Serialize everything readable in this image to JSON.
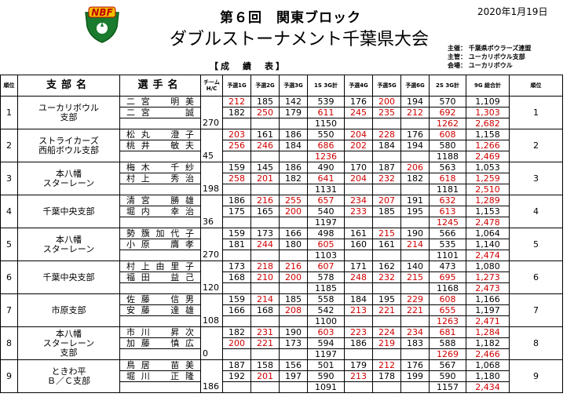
{
  "header": {
    "logo_text": "NBF",
    "date": "2020年1月19日",
    "title_line1": "第６回　関東ブロック",
    "title_line2": "ダブルストーナメント千葉県大会",
    "organizers": [
      {
        "label": "主催：",
        "value": "千葉県ボウラーズ連盟"
      },
      {
        "label": "主管：",
        "value": "ユーカリボウル支部"
      },
      {
        "label": "会場：",
        "value": "ユーカリボウル"
      }
    ],
    "section_title": "【成　績　表】"
  },
  "columns": {
    "rank_no": "順位",
    "branch": "支部名",
    "player": "選手名",
    "team_hdc": "チームH/C",
    "g1": "予選1G",
    "g2": "予選2G",
    "g3": "予選3G",
    "s1": "1S 3G計",
    "g4": "予選4G",
    "g5": "予選5G",
    "g6": "予選6G",
    "s2": "2S 3G計",
    "total": "9G 総合計",
    "rank": "順位"
  },
  "colors": {
    "highlight": "#d00000",
    "text": "#000000"
  },
  "teams": [
    {
      "no": "1",
      "branch": [
        "ユーカリボウル",
        "支部"
      ],
      "hdc": "270",
      "players": [
        {
          "name": "二宮　明美",
          "g1": "212",
          "g2": "185",
          "g3": "142",
          "s1": "539",
          "g4": "176",
          "g5": "200",
          "g6": "194",
          "s2": "570",
          "total": "1,109",
          "red": [
            "g1",
            "g5"
          ]
        },
        {
          "name": "二宮　　誠",
          "g1": "182",
          "g2": "250",
          "g3": "179",
          "s1": "611",
          "g4": "245",
          "g5": "235",
          "g6": "212",
          "s2": "692",
          "total": "1,303",
          "red": [
            "g2",
            "s1",
            "g4",
            "g5",
            "g6",
            "s2",
            "total"
          ]
        }
      ],
      "s1_total": "1150",
      "s2_total": "1262",
      "grand_total": "2,682",
      "rank": "1",
      "red_totals": [
        "s2_total",
        "grand_total"
      ]
    },
    {
      "no": "2",
      "branch": [
        "ストライカーズ",
        "西船ボウル支部"
      ],
      "hdc": "45",
      "players": [
        {
          "name": "松丸　澄子",
          "g1": "203",
          "g2": "161",
          "g3": "186",
          "s1": "550",
          "g4": "204",
          "g5": "228",
          "g6": "176",
          "s2": "608",
          "total": "1,158",
          "red": [
            "g1",
            "g4",
            "g5",
            "s2"
          ]
        },
        {
          "name": "桃井　敏夫",
          "g1": "256",
          "g2": "246",
          "g3": "184",
          "s1": "686",
          "g4": "202",
          "g5": "184",
          "g6": "194",
          "s2": "580",
          "total": "1,266",
          "red": [
            "g1",
            "g2",
            "s1",
            "g4",
            "total"
          ]
        }
      ],
      "s1_total": "1236",
      "s2_total": "1188",
      "grand_total": "2,469",
      "rank": "2",
      "red_totals": [
        "s1_total",
        "grand_total"
      ]
    },
    {
      "no": "3",
      "branch": [
        "本八幡",
        "スターレーン"
      ],
      "hdc": "198",
      "players": [
        {
          "name": "梅木　千紗",
          "g1": "159",
          "g2": "145",
          "g3": "186",
          "s1": "490",
          "g4": "170",
          "g5": "187",
          "g6": "206",
          "s2": "563",
          "total": "1,053",
          "red": [
            "g6"
          ]
        },
        {
          "name": "村上　秀治",
          "g1": "258",
          "g2": "201",
          "g3": "182",
          "s1": "641",
          "g4": "204",
          "g5": "232",
          "g6": "182",
          "s2": "618",
          "total": "1,259",
          "red": [
            "g1",
            "g2",
            "s1",
            "g4",
            "g5",
            "s2",
            "total"
          ]
        }
      ],
      "s1_total": "1131",
      "s2_total": "1181",
      "grand_total": "2,510",
      "rank": "3",
      "red_totals": [
        "grand_total"
      ]
    },
    {
      "no": "4",
      "branch": [
        "千葉中央支部"
      ],
      "hdc": "36",
      "players": [
        {
          "name": "清宮　勝雄",
          "g1": "186",
          "g2": "216",
          "g3": "255",
          "s1": "657",
          "g4": "234",
          "g5": "207",
          "g6": "191",
          "s2": "632",
          "total": "1,289",
          "red": [
            "g2",
            "g3",
            "s1",
            "g4",
            "g5",
            "s2",
            "total"
          ]
        },
        {
          "name": "堀内　幸治",
          "g1": "175",
          "g2": "165",
          "g3": "200",
          "s1": "540",
          "g4": "233",
          "g5": "185",
          "g6": "195",
          "s2": "613",
          "total": "1,153",
          "red": [
            "g3",
            "g4",
            "s2"
          ]
        }
      ],
      "s1_total": "1197",
      "s2_total": "1245",
      "grand_total": "2,478",
      "rank": "4",
      "red_totals": [
        "s2_total",
        "grand_total"
      ]
    },
    {
      "no": "5",
      "branch": [
        "本八幡",
        "スターレーン"
      ],
      "hdc": "270",
      "players": [
        {
          "name": "勢籏加代子",
          "g1": "159",
          "g2": "173",
          "g3": "166",
          "s1": "498",
          "g4": "161",
          "g5": "215",
          "g6": "190",
          "s2": "566",
          "total": "1,064",
          "red": [
            "g5"
          ]
        },
        {
          "name": "小原　膺孝",
          "g1": "181",
          "g2": "244",
          "g3": "180",
          "s1": "605",
          "g4": "160",
          "g5": "161",
          "g6": "214",
          "s2": "535",
          "total": "1,140",
          "red": [
            "g2",
            "s1",
            "g6"
          ]
        }
      ],
      "s1_total": "1103",
      "s2_total": "1101",
      "grand_total": "2,474",
      "rank": "5",
      "red_totals": [
        "grand_total"
      ]
    },
    {
      "no": "6",
      "branch": [
        "千葉中央支部"
      ],
      "hdc": "120",
      "players": [
        {
          "name": "村上由里子",
          "g1": "173",
          "g2": "218",
          "g3": "216",
          "s1": "607",
          "g4": "171",
          "g5": "162",
          "g6": "140",
          "s2": "473",
          "total": "1,080",
          "red": [
            "g2",
            "g3",
            "s1"
          ]
        },
        {
          "name": "福田　益己",
          "g1": "168",
          "g2": "210",
          "g3": "200",
          "s1": "578",
          "g4": "248",
          "g5": "232",
          "g6": "215",
          "s2": "695",
          "total": "1,273",
          "red": [
            "g2",
            "g3",
            "g4",
            "g5",
            "g6",
            "s2",
            "total"
          ]
        }
      ],
      "s1_total": "1185",
      "s2_total": "1168",
      "grand_total": "2,473",
      "rank": "6",
      "red_totals": [
        "grand_total"
      ]
    },
    {
      "no": "7",
      "branch": [
        "市原支部"
      ],
      "hdc": "108",
      "players": [
        {
          "name": "佐藤　信男",
          "g1": "159",
          "g2": "214",
          "g3": "185",
          "s1": "558",
          "g4": "184",
          "g5": "195",
          "g6": "229",
          "s2": "608",
          "total": "1,166",
          "red": [
            "g2",
            "g6",
            "s2"
          ]
        },
        {
          "name": "安藤　達雄",
          "g1": "166",
          "g2": "168",
          "g3": "208",
          "s1": "542",
          "g4": "213",
          "g5": "221",
          "g6": "221",
          "s2": "655",
          "total": "1,197",
          "red": [
            "g3",
            "g4",
            "g5",
            "g6",
            "s2"
          ]
        }
      ],
      "s1_total": "1100",
      "s2_total": "1263",
      "grand_total": "2,471",
      "rank": "7",
      "red_totals": [
        "s2_total",
        "grand_total"
      ]
    },
    {
      "no": "8",
      "branch": [
        "本八幡",
        "スターレーン",
        "支部"
      ],
      "hdc": "0",
      "players": [
        {
          "name": "市川　昇次",
          "g1": "182",
          "g2": "231",
          "g3": "190",
          "s1": "603",
          "g4": "223",
          "g5": "224",
          "g6": "234",
          "s2": "681",
          "total": "1,284",
          "red": [
            "g2",
            "s1",
            "g4",
            "g5",
            "g6",
            "s2",
            "total"
          ]
        },
        {
          "name": "加藤　慎広",
          "g1": "200",
          "g2": "221",
          "g3": "173",
          "s1": "594",
          "g4": "186",
          "g5": "219",
          "g6": "183",
          "s2": "588",
          "total": "1,182",
          "red": [
            "g1",
            "g2",
            "g5"
          ]
        }
      ],
      "s1_total": "1197",
      "s2_total": "1269",
      "grand_total": "2,466",
      "rank": "8",
      "red_totals": [
        "s2_total",
        "grand_total"
      ]
    },
    {
      "no": "9",
      "branch": [
        "ときわ平",
        "Ｂ／Ｃ支部"
      ],
      "hdc": "186",
      "players": [
        {
          "name": "鳥居　苗美",
          "g1": "187",
          "g2": "158",
          "g3": "156",
          "s1": "501",
          "g4": "179",
          "g5": "212",
          "g6": "176",
          "s2": "567",
          "total": "1,068",
          "red": [
            "g5"
          ]
        },
        {
          "name": "堀川　正隆",
          "g1": "192",
          "g2": "201",
          "g3": "197",
          "s1": "590",
          "g4": "213",
          "g5": "178",
          "g6": "199",
          "s2": "590",
          "total": "1,180",
          "red": [
            "g2",
            "g4"
          ]
        }
      ],
      "s1_total": "1091",
      "s2_total": "1157",
      "grand_total": "2,434",
      "rank": "9",
      "red_totals": [
        "grand_total"
      ]
    }
  ]
}
